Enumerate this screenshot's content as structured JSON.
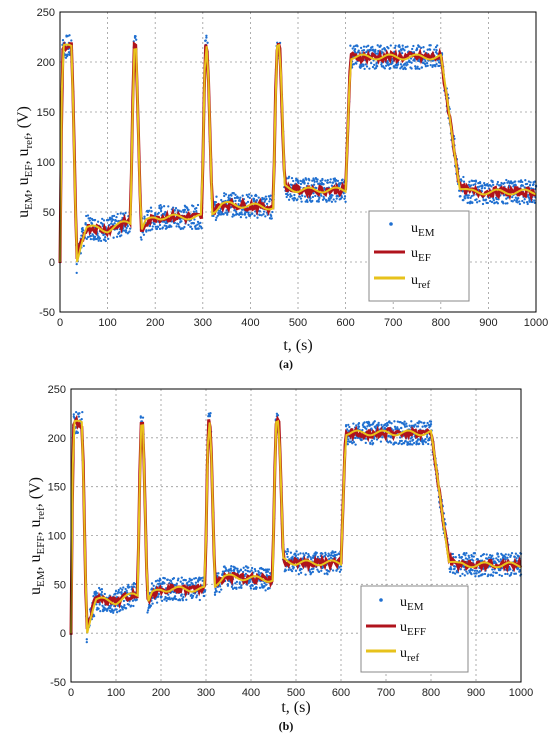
{
  "chart_data": [
    {
      "type": "line",
      "panel_label": "(a)",
      "xlabel": "t, (s)",
      "ylabel_parts": [
        {
          "base": "u",
          "sub": "EM"
        },
        {
          "base": ", u",
          "sub": "EF"
        },
        {
          "base": ", u",
          "sub": "ref"
        },
        {
          "base": ", (V)",
          "sub": ""
        }
      ],
      "xlim": [
        0,
        1000
      ],
      "ylim": [
        -50,
        250
      ],
      "xticks": [
        0,
        100,
        200,
        300,
        400,
        500,
        600,
        700,
        800,
        900,
        1000
      ],
      "yticks": [
        -50,
        0,
        50,
        100,
        150,
        200,
        250
      ],
      "grid": true,
      "legend_position": "right-middle",
      "series": [
        {
          "name_base": "u",
          "name_sub": "EM",
          "style": "scatter",
          "color": "#1f6fd0"
        },
        {
          "name_base": "u",
          "name_sub": "EF",
          "style": "line",
          "color": "#b0131c"
        },
        {
          "name_base": "u",
          "name_sub": "ref",
          "style": "line",
          "color": "#e7c21b"
        }
      ],
      "reference_points": [
        [
          0,
          0
        ],
        [
          5,
          215
        ],
        [
          25,
          215
        ],
        [
          35,
          0
        ],
        [
          45,
          20
        ],
        [
          55,
          35
        ],
        [
          100,
          32
        ],
        [
          140,
          40
        ],
        [
          148,
          40
        ],
        [
          155,
          215
        ],
        [
          160,
          215
        ],
        [
          170,
          30
        ],
        [
          180,
          40
        ],
        [
          200,
          45
        ],
        [
          290,
          45
        ],
        [
          298,
          45
        ],
        [
          305,
          215
        ],
        [
          310,
          215
        ],
        [
          320,
          50
        ],
        [
          340,
          58
        ],
        [
          440,
          55
        ],
        [
          448,
          55
        ],
        [
          455,
          215
        ],
        [
          462,
          215
        ],
        [
          472,
          75
        ],
        [
          500,
          72
        ],
        [
          600,
          72
        ],
        [
          610,
          205
        ],
        [
          700,
          205
        ],
        [
          800,
          205
        ],
        [
          840,
          75
        ],
        [
          860,
          70
        ],
        [
          1000,
          70
        ]
      ],
      "noise_amplitude": 12
    },
    {
      "type": "line",
      "panel_label": "(b)",
      "xlabel": "t, (s)",
      "ylabel_parts": [
        {
          "base": "u",
          "sub": "EM"
        },
        {
          "base": ", u",
          "sub": "EFF"
        },
        {
          "base": ", u",
          "sub": "ref"
        },
        {
          "base": ", (V)",
          "sub": ""
        }
      ],
      "xlim": [
        0,
        1000
      ],
      "ylim": [
        -50,
        250
      ],
      "xticks": [
        0,
        100,
        200,
        300,
        400,
        500,
        600,
        700,
        800,
        900,
        1000
      ],
      "yticks": [
        -50,
        0,
        50,
        100,
        150,
        200,
        250
      ],
      "grid": true,
      "legend_position": "bottom-right",
      "series": [
        {
          "name_base": "u",
          "name_sub": "EM",
          "style": "scatter",
          "color": "#1f6fd0"
        },
        {
          "name_base": "u",
          "name_sub": "EFF",
          "style": "line",
          "color": "#b0131c"
        },
        {
          "name_base": "u",
          "name_sub": "ref",
          "style": "line",
          "color": "#e7c21b"
        }
      ],
      "reference_points": [
        [
          0,
          0
        ],
        [
          5,
          215
        ],
        [
          25,
          215
        ],
        [
          35,
          0
        ],
        [
          45,
          20
        ],
        [
          55,
          35
        ],
        [
          100,
          32
        ],
        [
          140,
          40
        ],
        [
          148,
          40
        ],
        [
          155,
          215
        ],
        [
          160,
          215
        ],
        [
          170,
          30
        ],
        [
          180,
          40
        ],
        [
          200,
          45
        ],
        [
          290,
          45
        ],
        [
          298,
          45
        ],
        [
          305,
          215
        ],
        [
          310,
          215
        ],
        [
          320,
          50
        ],
        [
          340,
          58
        ],
        [
          440,
          55
        ],
        [
          448,
          55
        ],
        [
          455,
          215
        ],
        [
          462,
          215
        ],
        [
          472,
          75
        ],
        [
          500,
          72
        ],
        [
          600,
          72
        ],
        [
          610,
          205
        ],
        [
          700,
          205
        ],
        [
          800,
          205
        ],
        [
          840,
          75
        ],
        [
          860,
          70
        ],
        [
          1000,
          70
        ]
      ],
      "noise_amplitude": 12
    }
  ]
}
